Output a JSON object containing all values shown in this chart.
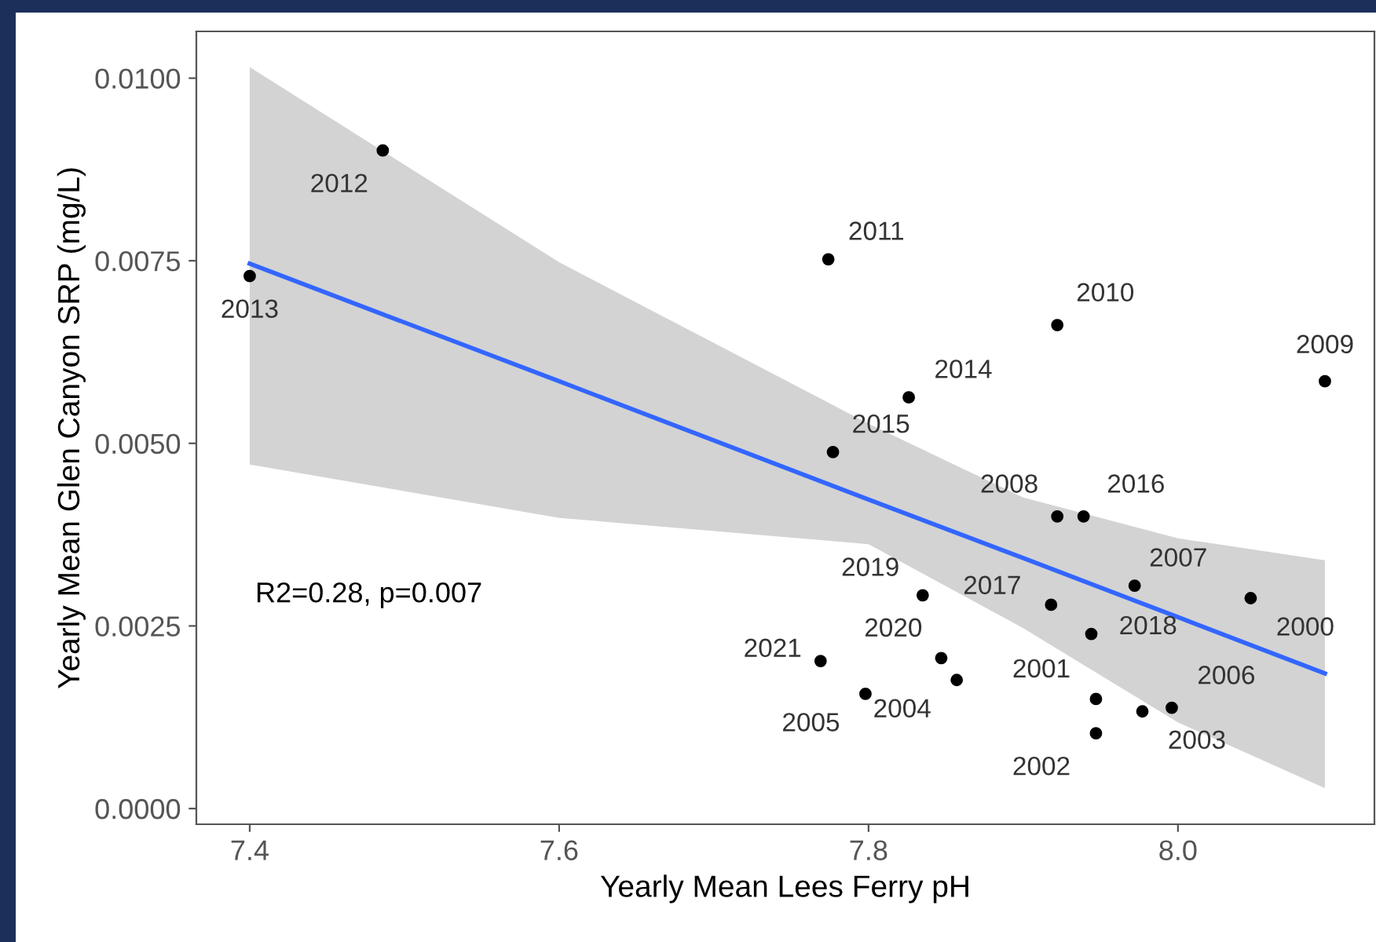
{
  "chart_data": {
    "type": "scatter",
    "xlabel": "Yearly Mean Lees Ferry pH",
    "ylabel": "Yearly Mean Glen Canyon SRP (mg/L)",
    "xlim": [
      7.3655,
      8.127
    ],
    "ylim": [
      -0.000215,
      0.01064
    ],
    "xticks": [
      {
        "value": 7.4,
        "label": "7.4"
      },
      {
        "value": 7.6,
        "label": "7.6"
      },
      {
        "value": 7.8,
        "label": "7.8"
      },
      {
        "value": 8.0,
        "label": "8.0"
      }
    ],
    "yticks": [
      {
        "value": 0,
        "label": "0.0000"
      },
      {
        "value": 0.0025,
        "label": "0.0025"
      },
      {
        "value": 0.005,
        "label": "0.0050"
      },
      {
        "value": 0.0075,
        "label": "0.0075"
      },
      {
        "value": 0.01,
        "label": "0.0100"
      }
    ],
    "grid": false,
    "legend": false,
    "annotations": [
      "R2=0.28, p=0.007",
      {
        "text": "2000",
        "x": 8.047,
        "y": 0.00288
      },
      {
        "text": "2001",
        "x": 7.947,
        "y": 0.0015
      },
      {
        "text": "2002",
        "x": 7.947,
        "y": 0.00103
      },
      {
        "text": "2003",
        "x": 7.977,
        "y": 0.00133
      },
      {
        "text": "2004",
        "x": 7.857,
        "y": 0.00176
      },
      {
        "text": "2005",
        "x": 7.798,
        "y": 0.00157
      },
      {
        "text": "2006",
        "x": 7.996,
        "y": 0.00138
      },
      {
        "text": "2007",
        "x": 7.972,
        "y": 0.00305
      },
      {
        "text": "2008",
        "x": 7.922,
        "y": 0.004
      },
      {
        "text": "2009",
        "x": 8.095,
        "y": 0.00585
      },
      {
        "text": "2010",
        "x": 7.922,
        "y": 0.00662
      },
      {
        "text": "2011",
        "x": 7.774,
        "y": 0.00752
      },
      {
        "text": "2012",
        "x": 7.486,
        "y": 0.00901
      },
      {
        "text": "2013",
        "x": 7.4,
        "y": 0.00729
      },
      {
        "text": "2014",
        "x": 7.826,
        "y": 0.00563
      },
      {
        "text": "2015",
        "x": 7.777,
        "y": 0.00488
      },
      {
        "text": "2016",
        "x": 7.939,
        "y": 0.004
      },
      {
        "text": "2017",
        "x": 7.918,
        "y": 0.00279
      },
      {
        "text": "2018",
        "x": 7.944,
        "y": 0.00239
      },
      {
        "text": "2019",
        "x": 7.835,
        "y": 0.00292
      },
      {
        "text": "2020",
        "x": 7.847,
        "y": 0.00206
      },
      {
        "text": "2021",
        "x": 7.769,
        "y": 0.00202
      }
    ],
    "series": [
      {
        "type": "line",
        "color": "#3366ff",
        "marker": "none",
        "x": [
          7.4,
          7.6,
          7.8,
          7.9,
          8.0,
          8.095
        ],
        "values": [
          0.00746,
          0.00585,
          0.00423,
          0.00343,
          0.00262,
          0.00185
        ],
        "lower": [
          0.00471,
          0.00398,
          0.00362,
          0.00247,
          0.00118,
          0.00028
        ],
        "upper": [
          0.01015,
          0.00748,
          0.00527,
          0.00426,
          0.0037,
          0.0034
        ]
      },
      {
        "color": "#000000",
        "marker": "circle",
        "x": [
          8.047,
          7.947,
          7.947,
          7.977,
          7.857,
          7.798,
          7.996,
          7.972,
          7.922,
          8.095,
          7.922,
          7.774,
          7.486,
          7.4,
          7.826,
          7.777,
          7.939,
          7.918,
          7.944,
          7.835,
          7.847,
          7.769
        ],
        "values": [
          0.00288,
          0.0015,
          0.00103,
          0.00133,
          0.00176,
          0.00157,
          0.00138,
          0.00305,
          0.004,
          0.00585,
          0.00662,
          0.00752,
          0.00901,
          0.00729,
          0.00563,
          0.00488,
          0.004,
          0.00279,
          0.00239,
          0.00292,
          0.00206,
          0.00202
        ]
      }
    ]
  }
}
